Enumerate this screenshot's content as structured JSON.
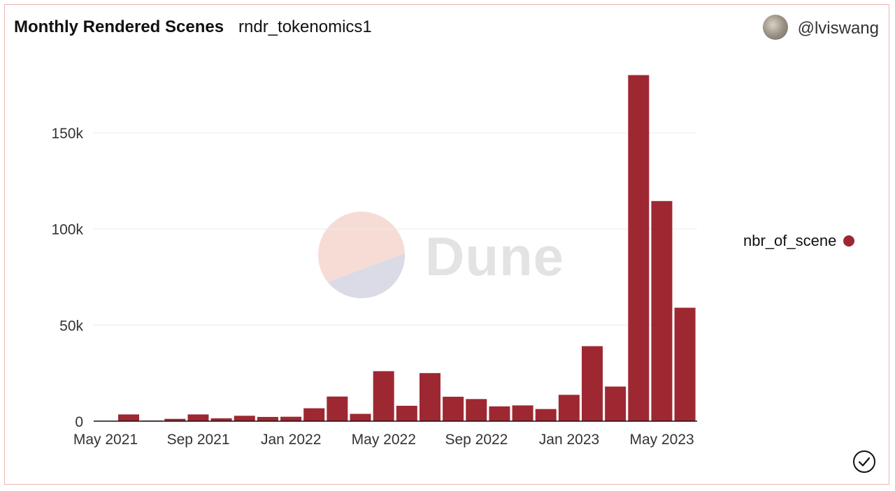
{
  "header": {
    "title": "Monthly Rendered Scenes",
    "subtitle": "rndr_tokenomics1",
    "author": "@lviswang"
  },
  "watermark": {
    "text": "Dune"
  },
  "colors": {
    "bar": "#9e2832",
    "grid": "#ececec",
    "axis": "#111111"
  },
  "chart_data": {
    "type": "bar",
    "title": "Monthly Rendered Scenes",
    "xlabel": "",
    "ylabel": "",
    "ylim": [
      0,
      190000
    ],
    "y_ticks": [
      0,
      50000,
      100000,
      150000
    ],
    "y_tick_labels": [
      "0",
      "50k",
      "100k",
      "150k"
    ],
    "x_tick_labels": [
      "May 2021",
      "Sep 2021",
      "Jan 2022",
      "May 2022",
      "Sep 2022",
      "Jan 2023",
      "May 2023"
    ],
    "x_tick_indices": [
      0,
      4,
      8,
      12,
      16,
      20,
      24
    ],
    "categories": [
      "2021-05",
      "2021-06",
      "2021-07",
      "2021-08",
      "2021-09",
      "2021-10",
      "2021-11",
      "2021-12",
      "2022-01",
      "2022-02",
      "2022-03",
      "2022-04",
      "2022-05",
      "2022-06",
      "2022-07",
      "2022-08",
      "2022-09",
      "2022-10",
      "2022-11",
      "2022-12",
      "2023-01",
      "2023-02",
      "2023-03",
      "2023-04",
      "2023-05",
      "2023-06"
    ],
    "series": [
      {
        "name": "nbr_of_scene",
        "values": [
          3500,
          300,
          1200,
          3500,
          1500,
          2800,
          2200,
          2300,
          6700,
          12800,
          3800,
          26000,
          8000,
          25000,
          12700,
          11500,
          7700,
          8200,
          6300,
          13700,
          39000,
          18000,
          180000,
          114500,
          59000,
          0
        ]
      }
    ],
    "legend_position": "right",
    "grid": true
  }
}
